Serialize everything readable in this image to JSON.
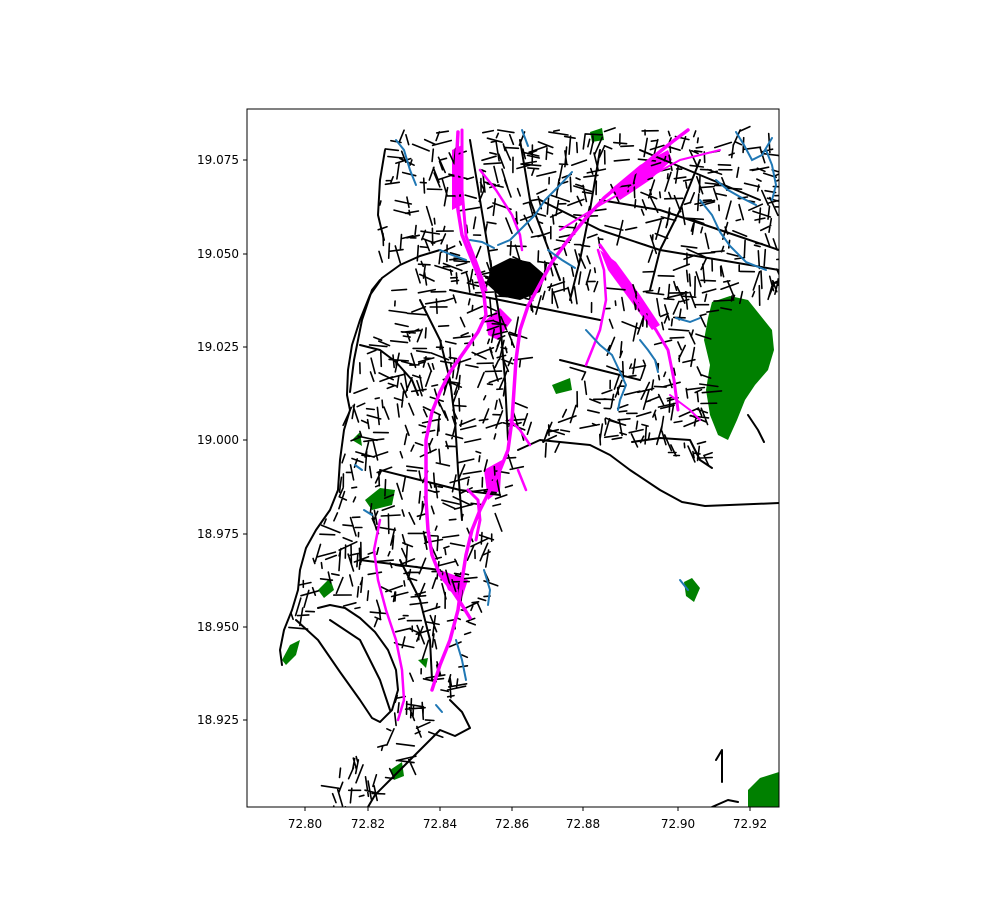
{
  "map": {
    "x_ticks": [
      "72.80",
      "72.82",
      "72.84",
      "72.86",
      "72.88",
      "72.90",
      "72.92"
    ],
    "y_ticks": [
      "19.075",
      "19.050",
      "19.025",
      "19.000",
      "18.975",
      "18.950",
      "18.925"
    ],
    "x_range": [
      72.785,
      72.927
    ],
    "y_range": [
      18.902,
      19.088
    ],
    "layers": [
      {
        "name": "roads",
        "color": "#000000"
      },
      {
        "name": "railways",
        "color": "#ff00ff"
      },
      {
        "name": "waterways",
        "color": "#1f77b4"
      },
      {
        "name": "parks",
        "color": "#008000"
      }
    ]
  }
}
